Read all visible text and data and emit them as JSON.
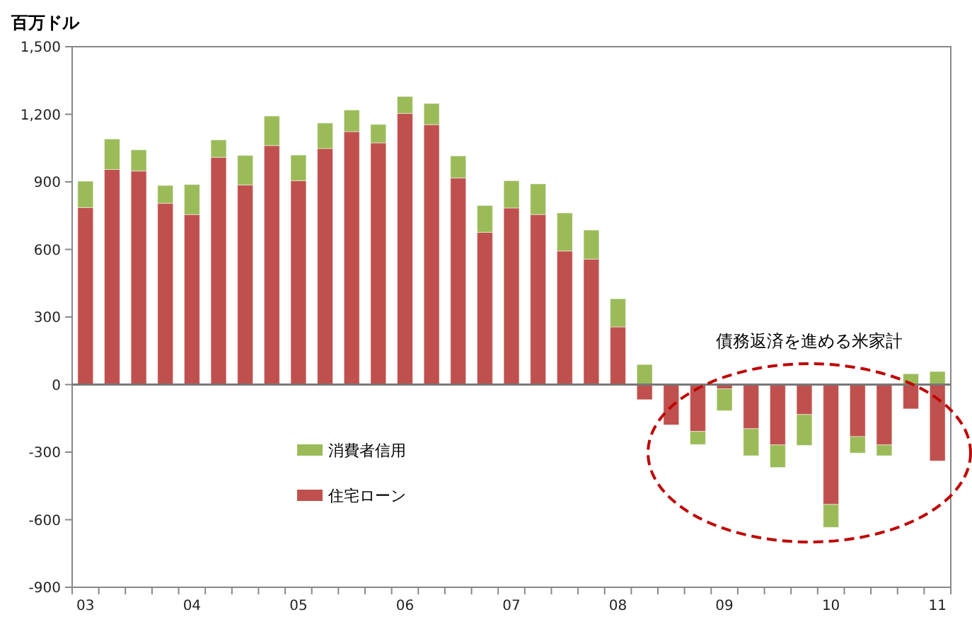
{
  "chart_data": {
    "type": "bar",
    "stacked": true,
    "ylabel": "百万ドル",
    "annotations": [
      "債務返済を進める米家計"
    ],
    "categories": [
      "03",
      null,
      null,
      null,
      "04",
      null,
      null,
      null,
      "05",
      null,
      null,
      null,
      "06",
      null,
      null,
      null,
      "07",
      null,
      null,
      null,
      "08",
      null,
      null,
      null,
      "09",
      null,
      null,
      null,
      "10",
      null,
      null,
      null,
      "11"
    ],
    "series": [
      {
        "name": "住宅ローン",
        "color": "#c0504d",
        "values": [
          786,
          955,
          948,
          805,
          755,
          1009,
          886,
          1061,
          905,
          1048,
          1123,
          1073,
          1204,
          1154,
          917,
          676,
          784,
          755,
          593,
          557,
          256,
          -67,
          -179,
          -208,
          -19,
          -196,
          -268,
          -133,
          -532,
          -231,
          -268,
          -108,
          -339
        ]
      },
      {
        "name": "消費者信用",
        "color": "#9bbb59",
        "values": [
          117,
          135,
          94,
          79,
          133,
          77,
          131,
          131,
          114,
          113,
          96,
          82,
          75,
          94,
          98,
          119,
          121,
          136,
          169,
          129,
          125,
          89,
          0,
          -58,
          -97,
          -120,
          -100,
          -137,
          -102,
          -73,
          -48,
          48,
          58
        ]
      }
    ],
    "ylim": [
      -900,
      1500
    ],
    "yticks": [
      {
        "value": 1500,
        "label": "1,500"
      },
      {
        "value": 1200,
        "label": "1,200"
      },
      900,
      600,
      300,
      0,
      -300,
      -600,
      -900
    ],
    "legend": "left"
  }
}
